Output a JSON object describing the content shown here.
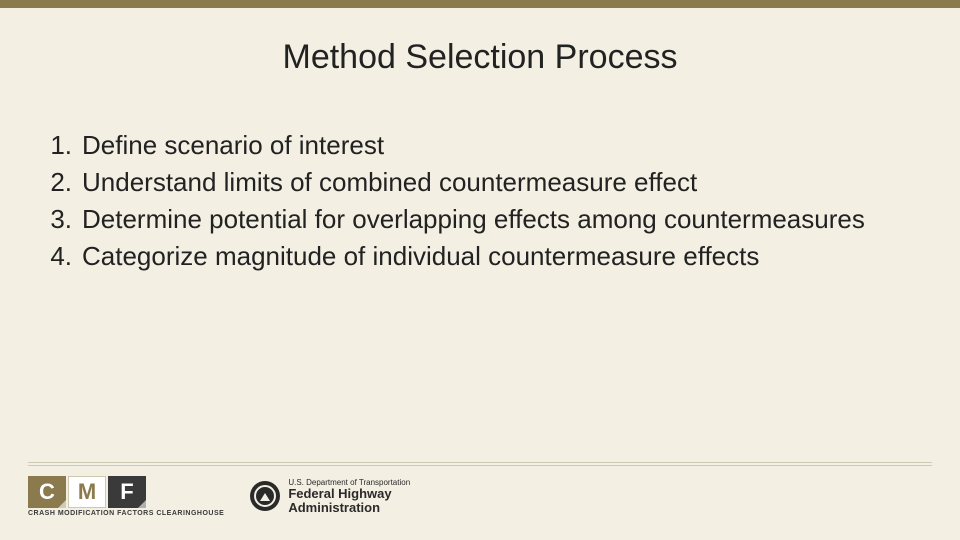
{
  "colors": {
    "background": "#f3efe3",
    "top_bar": "#8b7a4e",
    "text": "#222222",
    "divider": "#cfc8b2",
    "cmf_olive": "#8b7a4e",
    "cmf_dark": "#3a3a3a",
    "cmf_white": "#ffffff"
  },
  "typography": {
    "title_fontsize_pt": 26,
    "body_fontsize_pt": 20,
    "font_family": "Arial"
  },
  "title": "Method Selection Process",
  "items": [
    {
      "n": "1.",
      "text": "Define scenario of interest"
    },
    {
      "n": "2.",
      "text": "Understand limits of combined countermeasure effect"
    },
    {
      "n": "3.",
      "text": "Determine potential for overlapping effects among countermeasures"
    },
    {
      "n": "4.",
      "text": "Categorize magnitude of individual countermeasure effects"
    }
  ],
  "footer": {
    "cmf": {
      "letters": [
        "C",
        "M",
        "F"
      ],
      "subtitle": "CRASH MODIFICATION FACTORS CLEARINGHOUSE"
    },
    "fhwa": {
      "line1": "U.S. Department of Transportation",
      "line2": "Federal Highway",
      "line3": "Administration"
    }
  }
}
